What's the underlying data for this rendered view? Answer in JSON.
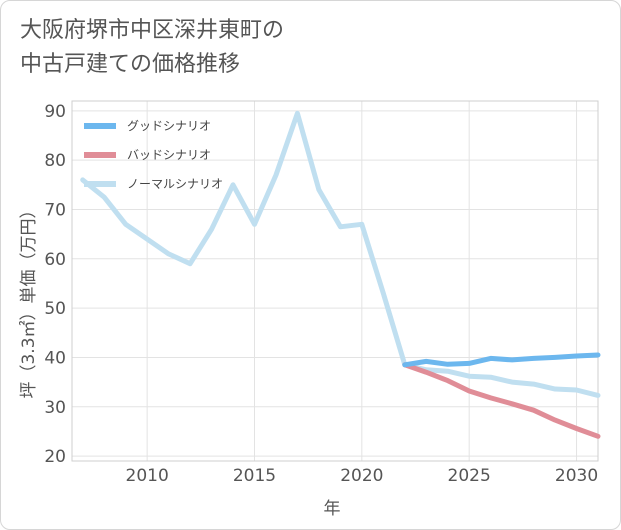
{
  "title_lines": [
    "大阪府堺市中区深井東町の",
    "中古戸建ての価格推移"
  ],
  "chart_data": {
    "type": "line",
    "title": "大阪府堺市中区深井東町の中古戸建ての価格推移",
    "xlabel": "年",
    "ylabel": "坪（3.3㎡）単価（万円）",
    "xlim": [
      2006.5,
      2031
    ],
    "ylim": [
      19,
      92
    ],
    "xticks": [
      2010,
      2015,
      2020,
      2025,
      2030
    ],
    "yticks": [
      20,
      30,
      40,
      50,
      60,
      70,
      80,
      90
    ],
    "grid": true,
    "legend_position": "top-left",
    "series": [
      {
        "name": "グッドシナリオ",
        "color": "#6cb7ee",
        "x": [
          2022,
          2023,
          2024,
          2025,
          2026,
          2027,
          2028,
          2029,
          2030,
          2031
        ],
        "values": [
          38.5,
          39.2,
          38.6,
          38.8,
          39.8,
          39.5,
          39.8,
          40.0,
          40.3,
          40.5
        ]
      },
      {
        "name": "バッドシナリオ",
        "color": "#e08d97",
        "x": [
          2022,
          2023,
          2024,
          2025,
          2026,
          2027,
          2028,
          2029,
          2030,
          2031
        ],
        "values": [
          38.5,
          37.0,
          35.3,
          33.2,
          31.8,
          30.6,
          29.3,
          27.3,
          25.6,
          24.0
        ]
      },
      {
        "name": "ノーマルシナリオ",
        "color": "#c0dff0",
        "x": [
          2007,
          2008,
          2009,
          2010,
          2011,
          2012,
          2013,
          2014,
          2015,
          2016,
          2017,
          2018,
          2019,
          2020,
          2021,
          2022,
          2023,
          2024,
          2025,
          2026,
          2027,
          2028,
          2029,
          2030,
          2031
        ],
        "values": [
          76,
          72.5,
          67,
          64,
          61,
          59,
          66,
          75,
          67,
          77,
          89.5,
          74,
          66.5,
          67,
          53,
          38.5,
          37.5,
          37.2,
          36.2,
          36.0,
          35.0,
          34.6,
          33.6,
          33.4,
          32.3
        ]
      }
    ]
  }
}
